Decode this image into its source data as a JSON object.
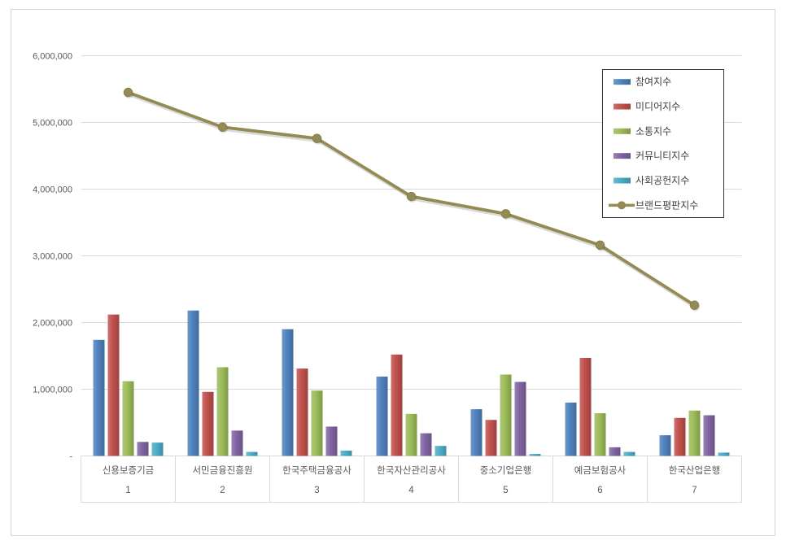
{
  "chart_data": {
    "type": "bar",
    "subtype": "grouped bars with line overlay",
    "categories": [
      "신용보증기금",
      "서민금융진흥원",
      "한국주택금융공사",
      "한국자산관리공사",
      "중소기업은행",
      "예금보험공사",
      "한국산업은행"
    ],
    "category_ranks": [
      "1",
      "2",
      "3",
      "4",
      "5",
      "6",
      "7"
    ],
    "series": [
      {
        "name": "참여지수",
        "type": "bar",
        "color": "#4F81BD",
        "values": [
          1740000,
          2180000,
          1900000,
          1190000,
          700000,
          800000,
          310000
        ]
      },
      {
        "name": "미디어지수",
        "type": "bar",
        "color": "#C0504D",
        "values": [
          2120000,
          960000,
          1310000,
          1520000,
          540000,
          1470000,
          570000
        ]
      },
      {
        "name": "소통지수",
        "type": "bar",
        "color": "#9BBB59",
        "values": [
          1120000,
          1330000,
          980000,
          630000,
          1220000,
          640000,
          680000
        ]
      },
      {
        "name": "커뮤니티지수",
        "type": "bar",
        "color": "#8064A2",
        "values": [
          210000,
          380000,
          440000,
          340000,
          1110000,
          130000,
          610000
        ]
      },
      {
        "name": "사회공헌지수",
        "type": "bar",
        "color": "#4BACC6",
        "values": [
          200000,
          60000,
          80000,
          150000,
          30000,
          60000,
          50000
        ]
      },
      {
        "name": "브랜드평판지수",
        "type": "line",
        "color": "#948A54",
        "values": [
          5450000,
          4930000,
          4760000,
          3890000,
          3630000,
          3160000,
          2260000
        ]
      }
    ],
    "title": "",
    "xlabel": "",
    "ylabel": "",
    "ylim": [
      0,
      6000000
    ],
    "y_step": 1000000,
    "y_zero_label": "-",
    "grid": true,
    "legend_position": "top-right"
  },
  "style": {
    "grid_color": "#D9D9D9",
    "axis_text_color": "#595959",
    "legend_text_color": "#404040",
    "legend_border_color": "#333333",
    "frame_border_color": "#d4d4d4"
  }
}
